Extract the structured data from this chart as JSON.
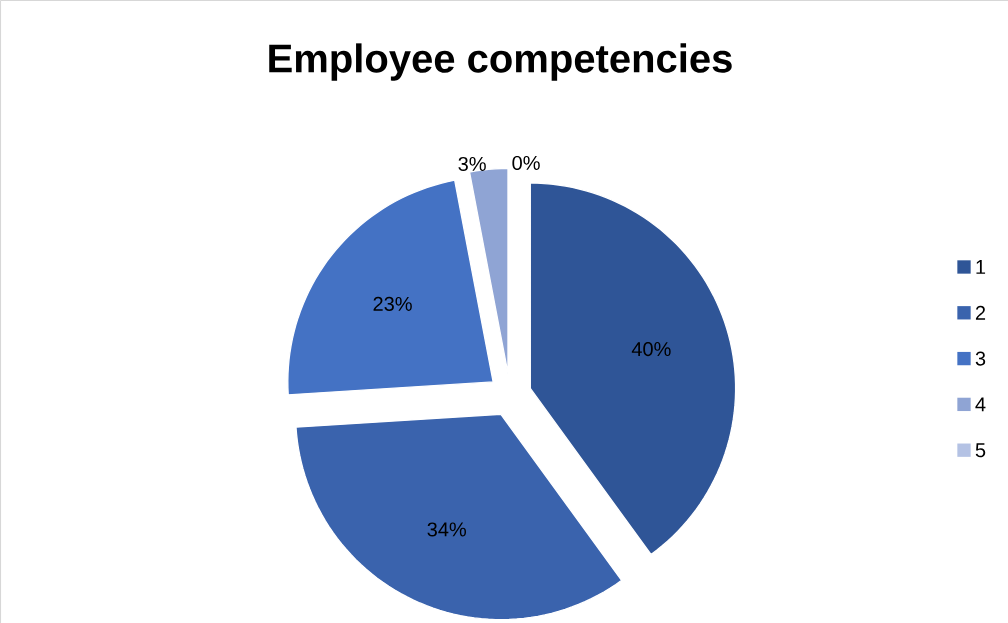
{
  "chart_data": {
    "type": "pie",
    "title": "Employee competencies",
    "categories": [
      "1",
      "2",
      "3",
      "4",
      "5"
    ],
    "values": [
      40,
      34,
      23,
      3,
      0
    ],
    "value_labels": [
      "40%",
      "34%",
      "23%",
      "3%",
      "0%"
    ],
    "colors": [
      "#2f5597",
      "#3a63ad",
      "#4472c4",
      "#8fa4d4",
      "#b4c2e4"
    ],
    "legend": "right"
  }
}
